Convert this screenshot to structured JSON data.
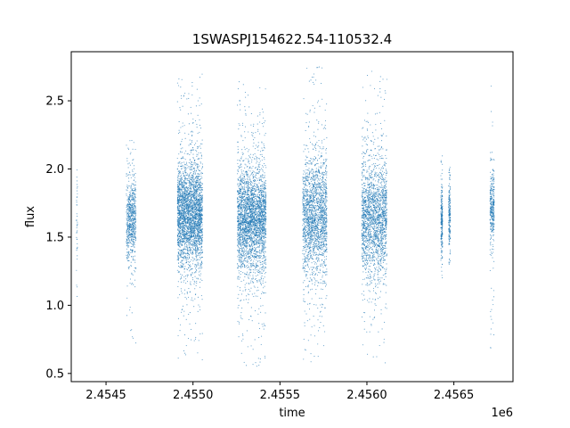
{
  "chart_data": {
    "type": "scatter",
    "title": "1SWASPJ154622.54-110532.4",
    "xlabel": "time",
    "ylabel": "flux",
    "x_offset_label": "1e6",
    "xlim": [
      2454300,
      2456840
    ],
    "ylim": [
      0.44,
      2.86
    ],
    "x_ticks": [
      2454500,
      2455000,
      2455500,
      2456000,
      2456500
    ],
    "x_tick_labels": [
      "2.4545",
      "2.4550",
      "2.4555",
      "2.4560",
      "2.4565"
    ],
    "y_ticks": [
      0.5,
      1.0,
      1.5,
      2.0,
      2.5
    ],
    "y_tick_labels": [
      "0.5",
      "1.0",
      "1.5",
      "2.0",
      "2.5"
    ],
    "grid": false,
    "marker_color": "#1f77b4",
    "seasons": [
      {
        "x_start": 2454330,
        "x_end": 2454336,
        "center": 1.65,
        "spread": 0.28,
        "y_min": 1.05,
        "y_max": 2.1,
        "points": 40
      },
      {
        "x_start": 2454617,
        "x_end": 2454672,
        "center": 1.62,
        "spread": 0.14,
        "y_min": 0.62,
        "y_max": 2.3,
        "points": 700
      },
      {
        "x_start": 2454910,
        "x_end": 2455055,
        "center": 1.66,
        "spread": 0.18,
        "y_min": 0.57,
        "y_max": 2.7,
        "points": 3000
      },
      {
        "x_start": 2455255,
        "x_end": 2455420,
        "center": 1.64,
        "spread": 0.18,
        "y_min": 0.55,
        "y_max": 2.66,
        "points": 3000
      },
      {
        "x_start": 2455630,
        "x_end": 2455770,
        "center": 1.66,
        "spread": 0.2,
        "y_min": 0.58,
        "y_max": 2.75,
        "points": 2000
      },
      {
        "x_start": 2455970,
        "x_end": 2456115,
        "center": 1.64,
        "spread": 0.2,
        "y_min": 0.56,
        "y_max": 2.74,
        "points": 2000
      },
      {
        "x_start": 2456425,
        "x_end": 2456435,
        "center": 1.62,
        "spread": 0.12,
        "y_min": 0.7,
        "y_max": 2.45,
        "points": 250
      },
      {
        "x_start": 2456470,
        "x_end": 2456480,
        "center": 1.66,
        "spread": 0.12,
        "y_min": 1.3,
        "y_max": 2.02,
        "points": 200
      },
      {
        "x_start": 2456708,
        "x_end": 2456732,
        "center": 1.72,
        "spread": 0.13,
        "y_min": 0.65,
        "y_max": 2.62,
        "points": 350
      }
    ]
  }
}
